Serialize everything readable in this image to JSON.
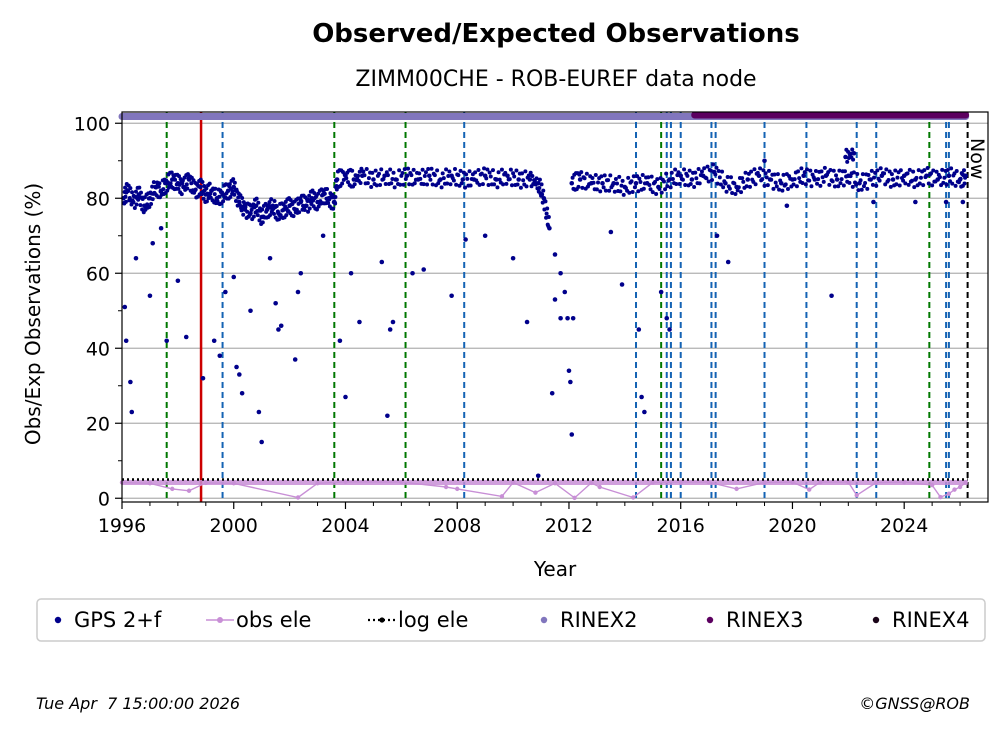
{
  "chart_data": {
    "type": "scatter",
    "title": "Observed/Expected Observations",
    "subtitle": "ZIMM00CHE - ROB-EUREF data node",
    "xlabel": "Year",
    "ylabel": "Obs/Exp Observations (%)",
    "xlim": [
      1996.0,
      2027.0
    ],
    "ylim": [
      -1,
      103
    ],
    "x_ticks": [
      1996,
      2000,
      2004,
      2008,
      2012,
      2016,
      2020,
      2024
    ],
    "x_tick_labels": [
      "1996",
      "2000",
      "2004",
      "2008",
      "2012",
      "2016",
      "2020",
      "2024"
    ],
    "y_ticks": [
      0,
      20,
      40,
      60,
      80,
      100
    ],
    "y_tick_labels": [
      "0",
      "20",
      "40",
      "60",
      "80",
      "100"
    ],
    "grid": "horizontal",
    "now_label": "Now",
    "now_x": 2026.27,
    "colors": {
      "gps": "#00008b",
      "obs_ele": "#c88fd6",
      "log_ele": "#000000",
      "rinex2": "#8176bd",
      "rinex3": "#5c0060",
      "rinex4": "#1a0418",
      "red_event": "#cc0000",
      "green_event": "#007700",
      "blue_event": "#1463b4",
      "grid": "#b0b0b0"
    },
    "series": [
      {
        "name": "GPS 2+f",
        "style": "markers",
        "points": [
          [
            1996.05,
            80
          ],
          [
            1996.2,
            82
          ],
          [
            1996.4,
            79
          ],
          [
            1996.6,
            81
          ],
          [
            1996.8,
            78
          ],
          [
            1997.0,
            80
          ],
          [
            1997.2,
            83
          ],
          [
            1997.4,
            82
          ],
          [
            1997.6,
            84
          ],
          [
            1997.8,
            85
          ],
          [
            1998.0,
            84
          ],
          [
            1998.2,
            83
          ],
          [
            1998.4,
            85
          ],
          [
            1998.6,
            82
          ],
          [
            1998.8,
            83
          ],
          [
            1999.0,
            81
          ],
          [
            1999.2,
            82
          ],
          [
            1999.4,
            80
          ],
          [
            1999.6,
            81
          ],
          [
            1999.8,
            82
          ],
          [
            2000.0,
            83
          ],
          [
            2000.2,
            79
          ],
          [
            2000.4,
            77
          ],
          [
            2000.6,
            76
          ],
          [
            2000.8,
            78
          ],
          [
            2001.0,
            75
          ],
          [
            2001.2,
            77
          ],
          [
            2001.4,
            78
          ],
          [
            2001.6,
            76
          ],
          [
            2001.8,
            77
          ],
          [
            2002.0,
            78
          ],
          [
            2002.2,
            77
          ],
          [
            2002.4,
            79
          ],
          [
            2002.6,
            78
          ],
          [
            2002.8,
            80
          ],
          [
            2003.0,
            79
          ],
          [
            2003.2,
            81
          ],
          [
            2003.4,
            80
          ],
          [
            2003.6,
            79
          ],
          [
            2003.7,
            85
          ],
          [
            2004.0,
            86
          ],
          [
            2004.3,
            85
          ],
          [
            2004.6,
            86
          ],
          [
            2005.0,
            85
          ],
          [
            2005.4,
            86
          ],
          [
            2005.8,
            85
          ],
          [
            2006.2,
            86
          ],
          [
            2006.6,
            85
          ],
          [
            2007.0,
            86
          ],
          [
            2007.4,
            85
          ],
          [
            2007.8,
            86
          ],
          [
            2008.2,
            85
          ],
          [
            2008.6,
            85
          ],
          [
            2009.0,
            86
          ],
          [
            2009.4,
            85
          ],
          [
            2009.8,
            86
          ],
          [
            2010.2,
            85
          ],
          [
            2010.6,
            85
          ],
          [
            2010.9,
            84
          ],
          [
            2011.1,
            80
          ],
          [
            2011.3,
            72
          ],
          [
            2011.5,
            65
          ],
          [
            2011.7,
            60
          ],
          [
            2011.85,
            55
          ],
          [
            2011.95,
            48
          ],
          [
            2012.1,
            84
          ],
          [
            2012.4,
            85
          ],
          [
            2012.8,
            84
          ],
          [
            2013.2,
            84
          ],
          [
            2013.6,
            84
          ],
          [
            2014.0,
            83
          ],
          [
            2014.4,
            84
          ],
          [
            2014.8,
            84
          ],
          [
            2015.2,
            83
          ],
          [
            2015.6,
            85
          ],
          [
            2016.0,
            86
          ],
          [
            2016.4,
            85
          ],
          [
            2016.8,
            86
          ],
          [
            2017.2,
            87
          ],
          [
            2017.6,
            84
          ],
          [
            2018.0,
            83
          ],
          [
            2018.4,
            85
          ],
          [
            2018.8,
            86
          ],
          [
            2019.2,
            85
          ],
          [
            2019.6,
            84
          ],
          [
            2020.0,
            85
          ],
          [
            2020.4,
            86
          ],
          [
            2020.8,
            85
          ],
          [
            2021.2,
            86
          ],
          [
            2021.6,
            85
          ],
          [
            2022.0,
            86
          ],
          [
            2022.4,
            84
          ],
          [
            2022.8,
            85
          ],
          [
            2023.2,
            86
          ],
          [
            2023.6,
            85
          ],
          [
            2024.0,
            86
          ],
          [
            2024.4,
            85
          ],
          [
            2024.8,
            86
          ],
          [
            2025.2,
            85
          ],
          [
            2025.6,
            86
          ],
          [
            2026.0,
            85
          ],
          [
            2026.2,
            86
          ],
          [
            1996.1,
            51
          ],
          [
            1996.15,
            42
          ],
          [
            1996.3,
            31
          ],
          [
            1996.35,
            23
          ],
          [
            1996.5,
            64
          ],
          [
            1997.0,
            54
          ],
          [
            1997.1,
            68
          ],
          [
            1997.4,
            72
          ],
          [
            1997.6,
            42
          ],
          [
            1998.0,
            58
          ],
          [
            1998.3,
            43
          ],
          [
            1998.9,
            32
          ],
          [
            1999.3,
            42
          ],
          [
            1999.5,
            38
          ],
          [
            1999.7,
            55
          ],
          [
            2000.0,
            59
          ],
          [
            2000.1,
            35
          ],
          [
            2000.2,
            33
          ],
          [
            2000.3,
            28
          ],
          [
            2000.6,
            50
          ],
          [
            2000.9,
            23
          ],
          [
            2001.0,
            15
          ],
          [
            2001.3,
            64
          ],
          [
            2001.5,
            52
          ],
          [
            2001.6,
            45
          ],
          [
            2001.7,
            46
          ],
          [
            2002.2,
            37
          ],
          [
            2002.3,
            55
          ],
          [
            2002.4,
            60
          ],
          [
            2003.2,
            70
          ],
          [
            2003.8,
            42
          ],
          [
            2004.0,
            27
          ],
          [
            2004.2,
            60
          ],
          [
            2004.5,
            47
          ],
          [
            2005.3,
            63
          ],
          [
            2005.5,
            22
          ],
          [
            2005.6,
            45
          ],
          [
            2005.7,
            47
          ],
          [
            2006.4,
            60
          ],
          [
            2006.8,
            61
          ],
          [
            2007.8,
            54
          ],
          [
            2008.3,
            69
          ],
          [
            2009.0,
            70
          ],
          [
            2010.0,
            64
          ],
          [
            2010.5,
            47
          ],
          [
            2010.9,
            6
          ],
          [
            2011.4,
            28
          ],
          [
            2011.5,
            53
          ],
          [
            2011.7,
            48
          ],
          [
            2012.0,
            34
          ],
          [
            2012.05,
            31
          ],
          [
            2012.1,
            17
          ],
          [
            2012.15,
            48
          ],
          [
            2013.5,
            71
          ],
          [
            2013.9,
            57
          ],
          [
            2014.5,
            45
          ],
          [
            2014.6,
            27
          ],
          [
            2014.7,
            23
          ],
          [
            2015.3,
            55
          ],
          [
            2015.5,
            48
          ],
          [
            2015.6,
            45
          ],
          [
            2017.3,
            70
          ],
          [
            2017.7,
            63
          ],
          [
            2019.0,
            90
          ],
          [
            2019.8,
            78
          ],
          [
            2021.4,
            54
          ],
          [
            2021.9,
            91
          ],
          [
            2022.2,
            92
          ],
          [
            2022.9,
            79
          ],
          [
            2024.4,
            79
          ],
          [
            2025.5,
            79
          ],
          [
            2026.1,
            79
          ]
        ]
      },
      {
        "name": "obs ele",
        "style": "line-markers",
        "points": [
          [
            1996.0,
            4.2
          ],
          [
            1997.0,
            4.0
          ],
          [
            1997.8,
            2.5
          ],
          [
            1998.4,
            2.0
          ],
          [
            1999.0,
            4.1
          ],
          [
            2000.0,
            4.0
          ],
          [
            2002.3,
            0.2
          ],
          [
            2003.0,
            4.0
          ],
          [
            2004.0,
            4.4
          ],
          [
            2006.0,
            4.3
          ],
          [
            2007.6,
            3.0
          ],
          [
            2008.0,
            2.5
          ],
          [
            2009.6,
            0.5
          ],
          [
            2010.0,
            4.2
          ],
          [
            2010.8,
            1.5
          ],
          [
            2011.5,
            4.0
          ],
          [
            2012.2,
            0.1
          ],
          [
            2012.8,
            4.1
          ],
          [
            2013.1,
            3.0
          ],
          [
            2014.3,
            0.2
          ],
          [
            2015.0,
            4.2
          ],
          [
            2016.0,
            4.3
          ],
          [
            2017.0,
            4.3
          ],
          [
            2018.0,
            2.5
          ],
          [
            2019.0,
            4.2
          ],
          [
            2020.0,
            4.3
          ],
          [
            2020.6,
            2.3
          ],
          [
            2021.0,
            4.3
          ],
          [
            2022.0,
            4.3
          ],
          [
            2022.3,
            0.8
          ],
          [
            2023.0,
            4.2
          ],
          [
            2024.0,
            4.3
          ],
          [
            2025.0,
            3.5
          ],
          [
            2025.3,
            0.3
          ],
          [
            2025.6,
            1.2
          ],
          [
            2025.8,
            2.3
          ],
          [
            2026.0,
            3.0
          ],
          [
            2026.2,
            4.2
          ]
        ]
      },
      {
        "name": "log ele",
        "style": "dotted-line",
        "points": [
          [
            1996.0,
            5.0
          ],
          [
            2026.27,
            5.0
          ]
        ]
      },
      {
        "name": "RINEX2",
        "style": "thick-band",
        "points": [
          [
            1996.0,
            101.8
          ],
          [
            2026.2,
            101.8
          ]
        ]
      },
      {
        "name": "RINEX3",
        "style": "thick-band",
        "points": [
          [
            2016.5,
            102.2
          ],
          [
            2026.2,
            102.2
          ]
        ]
      },
      {
        "name": "RINEX4",
        "style": "thick-band",
        "points": []
      }
    ],
    "event_lines": {
      "red": [
        1998.83
      ],
      "green": [
        1997.6,
        2003.6,
        2006.15,
        2015.3,
        2024.9
      ],
      "blue": [
        1999.6,
        2008.25,
        2014.4,
        2015.5,
        2015.65,
        2016.0,
        2017.1,
        2017.25,
        2019.0,
        2020.5,
        2022.3,
        2023.0,
        2025.5,
        2025.6
      ]
    }
  },
  "legend": {
    "placement": "bottom",
    "items": [
      {
        "label": "GPS 2+f",
        "kind": "dot",
        "color": "#00008b"
      },
      {
        "label": "obs ele",
        "kind": "line-dot",
        "color": "#c88fd6"
      },
      {
        "label": "log ele",
        "kind": "dotted",
        "color": "#000000"
      },
      {
        "label": "RINEX2",
        "kind": "dot",
        "color": "#8176bd"
      },
      {
        "label": "RINEX3",
        "kind": "dot",
        "color": "#5c0060"
      },
      {
        "label": "RINEX4",
        "kind": "dot",
        "color": "#1a0418"
      }
    ]
  },
  "footer": {
    "timestamp": "Tue Apr  7 15:00:00 2026",
    "credit": "©GNSS@ROB"
  }
}
